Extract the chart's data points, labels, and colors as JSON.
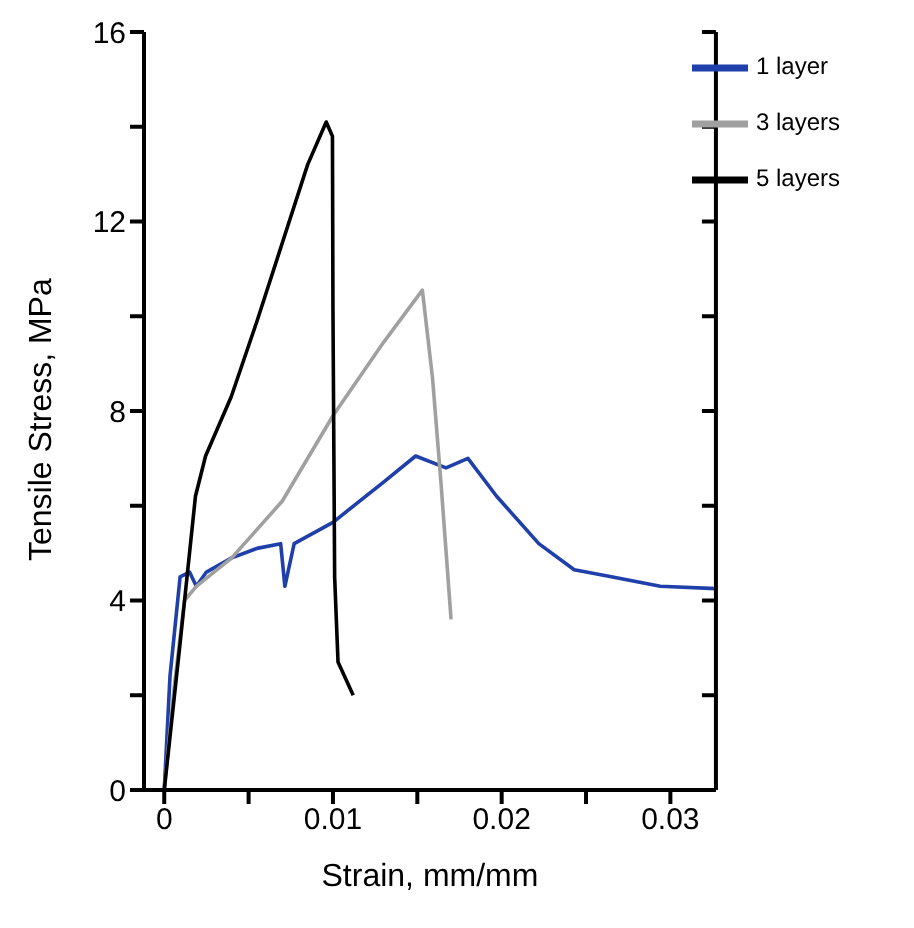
{
  "chart_data": {
    "type": "line",
    "xlabel": "Strain, mm/mm",
    "ylabel": "Tensile Stress, MPa",
    "xlim": [
      -0.0012,
      0.0327
    ],
    "xticks": [
      0,
      {
        "value": 0.005,
        "label": null
      },
      0.01,
      {
        "value": 0.015,
        "label": null
      },
      0.02,
      {
        "value": 0.025,
        "label": null
      },
      0.03
    ],
    "ylim": [
      0,
      16
    ],
    "yticks": [
      0,
      {
        "value": 2,
        "label": null
      },
      4,
      {
        "value": 6,
        "label": null
      },
      8,
      {
        "value": 10,
        "label": null
      },
      12,
      {
        "value": 14,
        "label": null
      },
      16
    ],
    "grid": false,
    "legend": "top right",
    "marker": "none",
    "line_style": "solid",
    "series": [
      {
        "name": "1 layer",
        "color": "#1f3faa",
        "x": [
          0,
          0.00034,
          0.00094,
          0.0015,
          0.0019,
          0.0025,
          0.004,
          0.0055,
          0.0069,
          0.00715,
          0.0077,
          0.01,
          0.013,
          0.0149,
          0.0167,
          0.018,
          0.0197,
          0.0222,
          0.0243,
          0.0265,
          0.0294,
          0.0327
        ],
        "values": [
          0,
          2.4,
          4.5,
          4.6,
          4.3,
          4.6,
          4.9,
          5.1,
          5.2,
          4.3,
          5.2,
          5.65,
          6.5,
          7.05,
          6.8,
          7.0,
          6.2,
          5.2,
          4.65,
          4.5,
          4.3,
          4.25
        ]
      },
      {
        "name": "3 layers",
        "color": "#a0a0a0",
        "x": [
          0,
          0.0006,
          0.0012,
          0.0019,
          0.004,
          0.007,
          0.01,
          0.013,
          0.0153,
          0.0159,
          0.0164,
          0.017
        ],
        "values": [
          0,
          2.2,
          4.0,
          4.3,
          4.9,
          6.1,
          7.9,
          9.45,
          10.55,
          8.7,
          6.5,
          3.6
        ]
      },
      {
        "name": "5 layers",
        "color": "#000000",
        "x": [
          0,
          0.00094,
          0.00185,
          0.00245,
          0.00397,
          0.0055,
          0.007,
          0.0085,
          0.0096,
          0.00997,
          0.01,
          0.0101,
          0.0103,
          0.0112
        ],
        "values": [
          0,
          3.1,
          6.2,
          7.05,
          8.3,
          9.9,
          11.55,
          13.2,
          14.1,
          13.8,
          10.15,
          4.5,
          2.7,
          2.0
        ]
      }
    ]
  }
}
